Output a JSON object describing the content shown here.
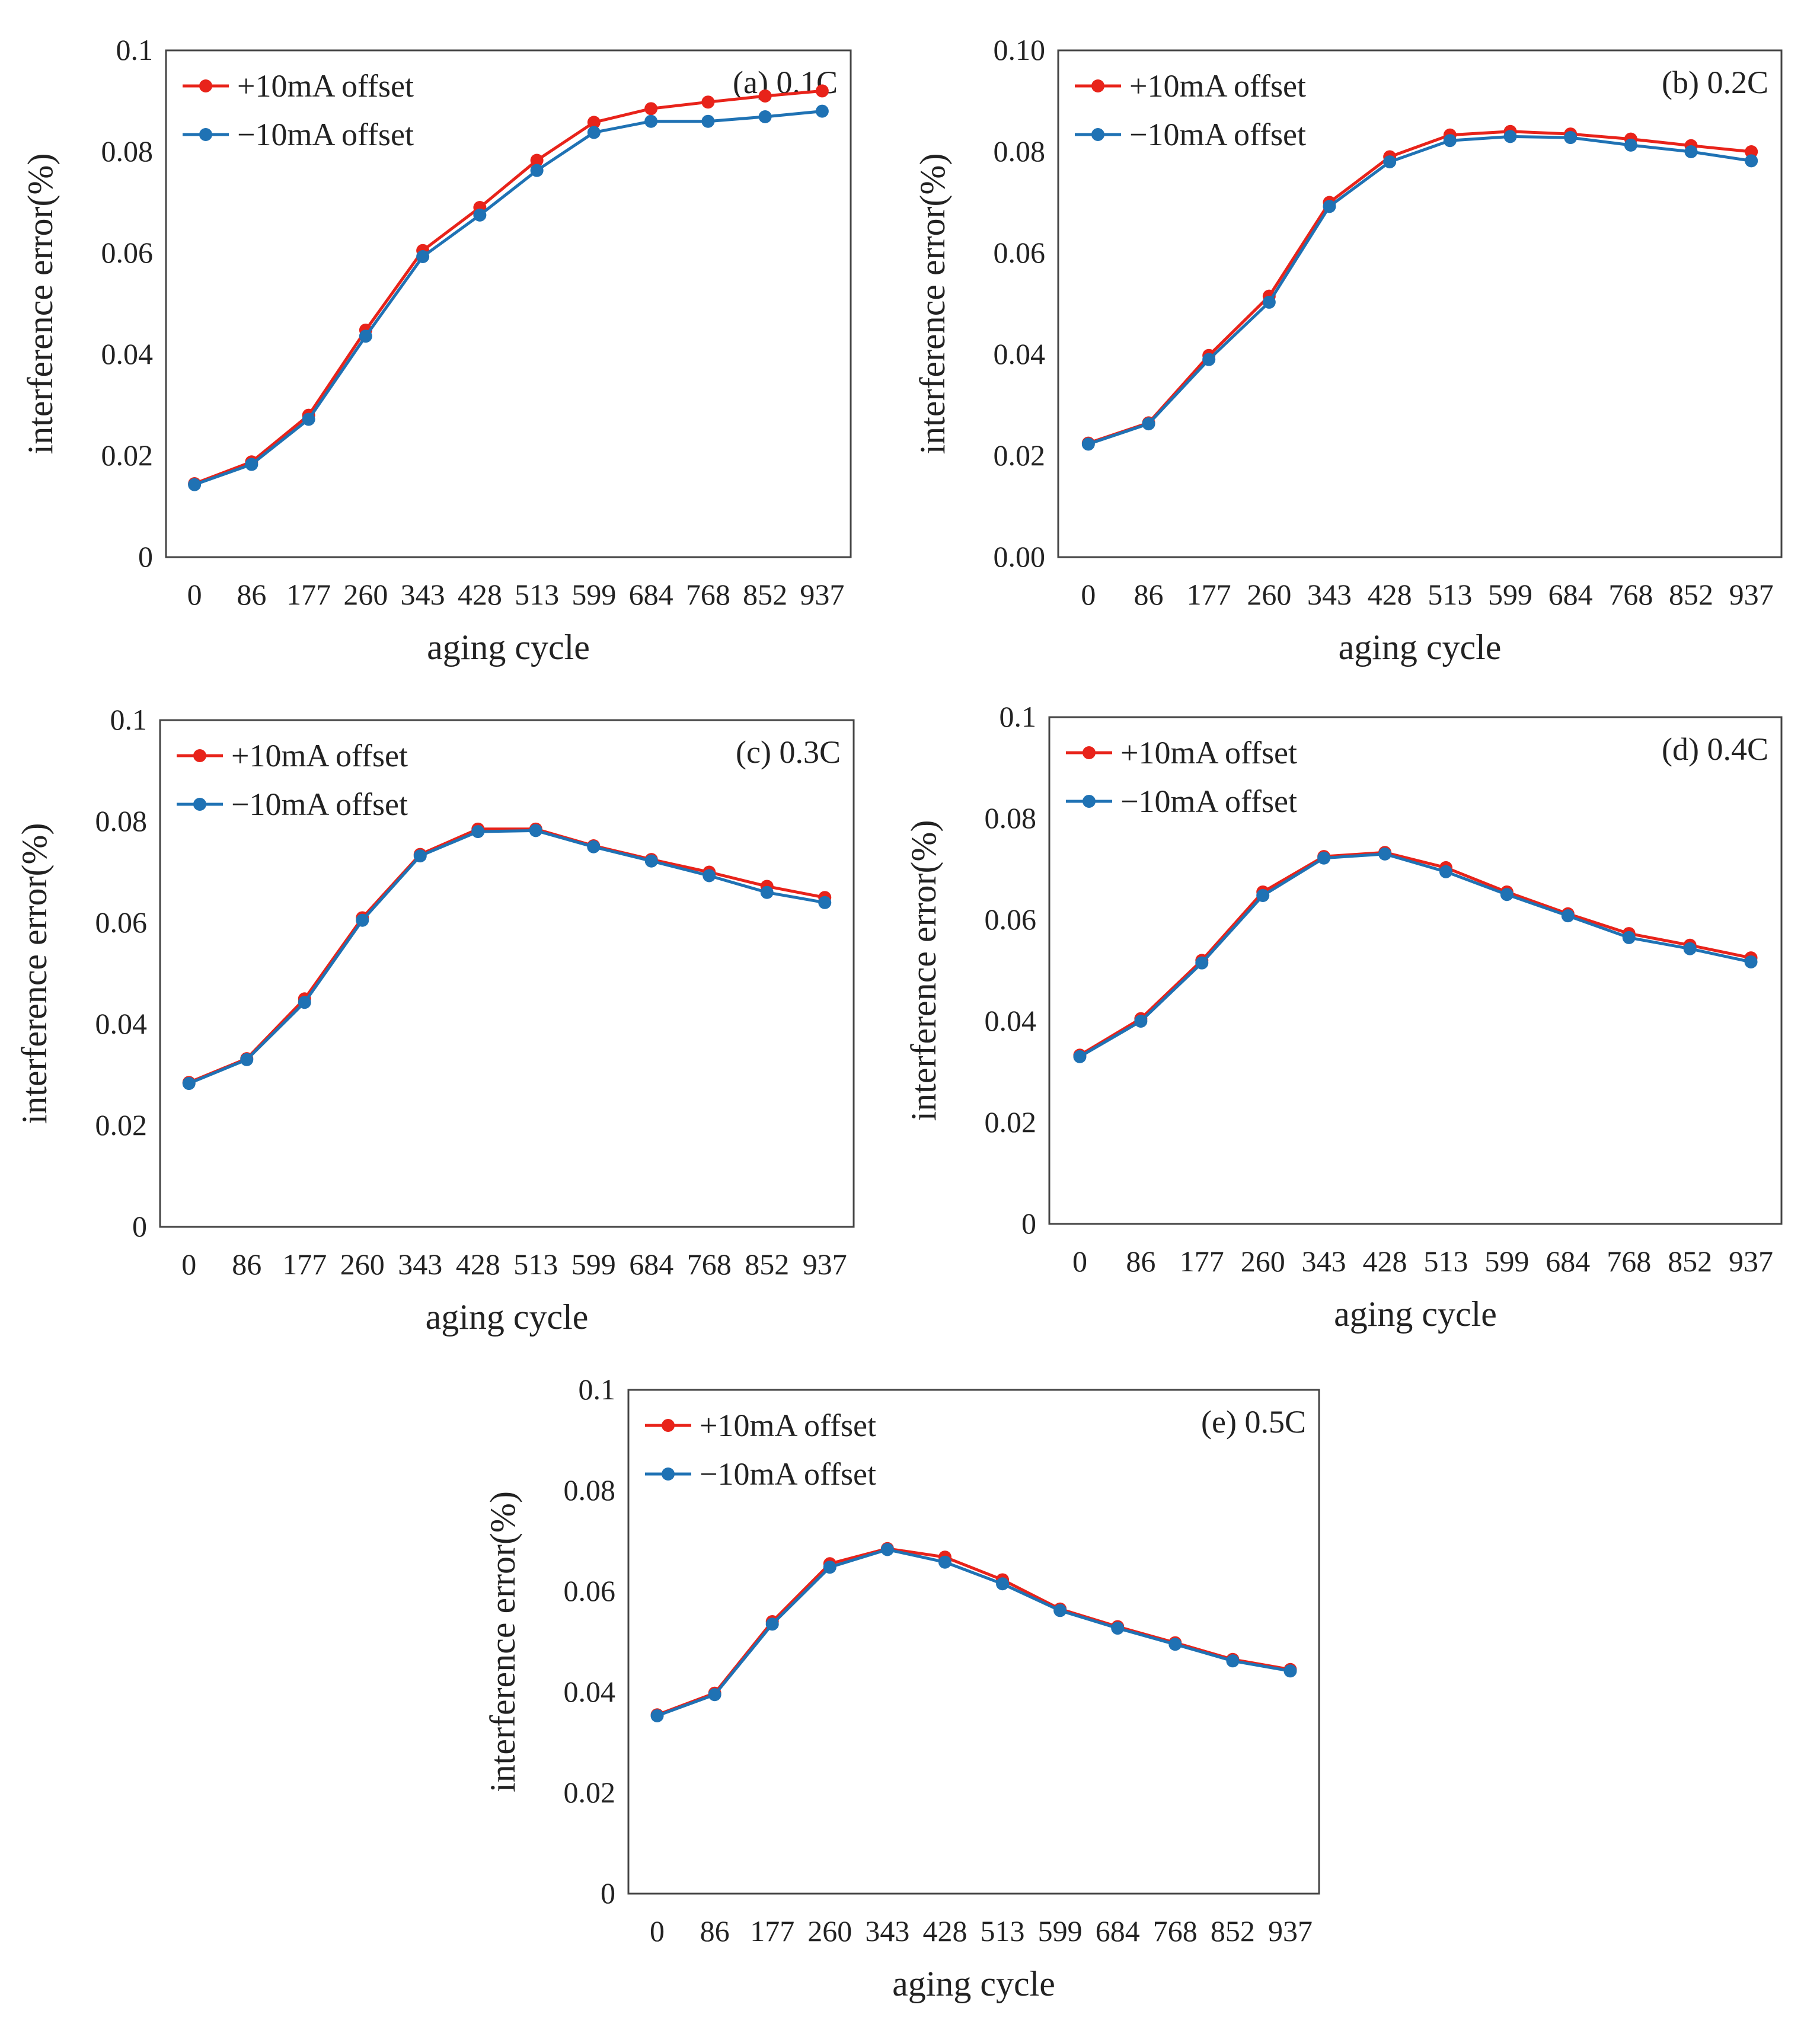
{
  "colors": {
    "plus": "#e8231a",
    "minus": "#1f72b4",
    "frame": "#444444",
    "text": "#222222"
  },
  "chart_data": [
    {
      "type": "line",
      "panel_label": "(a) 0.1C",
      "title": "",
      "xlabel": "aging  cycle",
      "ylabel": "interference error(%)",
      "categories": [
        "0",
        "86",
        "177",
        "260",
        "343",
        "428",
        "513",
        "599",
        "684",
        "768",
        "852",
        "937"
      ],
      "ylim": [
        0,
        0.1
      ],
      "yticks": [
        "0",
        "0.02",
        "0.04",
        "0.06",
        "0.08",
        "0.1"
      ],
      "legend_position": "top-left",
      "series": [
        {
          "name": "+10mA offset",
          "color": "#e8231a",
          "values": [
            0.0145,
            0.0188,
            0.028,
            0.0448,
            0.0605,
            0.069,
            0.0783,
            0.0858,
            0.0885,
            0.0898,
            0.091,
            0.092
          ]
        },
        {
          "name": "−10mA offset",
          "color": "#1f72b4",
          "values": [
            0.0143,
            0.0183,
            0.0272,
            0.0436,
            0.0593,
            0.0675,
            0.0763,
            0.0838,
            0.086,
            0.086,
            0.0869,
            0.088
          ]
        }
      ]
    },
    {
      "type": "line",
      "panel_label": "(b) 0.2C",
      "title": "",
      "xlabel": "aging  cycle",
      "ylabel": "interference error(%)",
      "categories": [
        "0",
        "86",
        "177",
        "260",
        "343",
        "428",
        "513",
        "599",
        "684",
        "768",
        "852",
        "937"
      ],
      "ylim": [
        0,
        0.1
      ],
      "yticks": [
        "0.00",
        "0.02",
        "0.04",
        "0.06",
        "0.08",
        "0.10"
      ],
      "legend_position": "top-left",
      "series": [
        {
          "name": "+10mA offset",
          "color": "#e8231a",
          "values": [
            0.0225,
            0.0265,
            0.0398,
            0.0515,
            0.07,
            0.079,
            0.0833,
            0.084,
            0.0835,
            0.0825,
            0.0812,
            0.08
          ]
        },
        {
          "name": "−10mA offset",
          "color": "#1f72b4",
          "values": [
            0.0223,
            0.0263,
            0.039,
            0.0503,
            0.0692,
            0.078,
            0.0822,
            0.083,
            0.0828,
            0.0813,
            0.08,
            0.0782
          ]
        }
      ]
    },
    {
      "type": "line",
      "panel_label": "(c) 0.3C",
      "title": "",
      "xlabel": "aging  cycle",
      "ylabel": "interference error(%)",
      "categories": [
        "0",
        "86",
        "177",
        "260",
        "343",
        "428",
        "513",
        "599",
        "684",
        "768",
        "852",
        "937"
      ],
      "ylim": [
        0,
        0.1
      ],
      "yticks": [
        "0",
        "0.02",
        "0.04",
        "0.06",
        "0.08",
        "0.1"
      ],
      "legend_position": "top-left",
      "series": [
        {
          "name": "+10mA offset",
          "color": "#e8231a",
          "values": [
            0.0285,
            0.0332,
            0.045,
            0.061,
            0.0735,
            0.0785,
            0.0785,
            0.0752,
            0.0725,
            0.07,
            0.0672,
            0.065
          ]
        },
        {
          "name": "−10mA offset",
          "color": "#1f72b4",
          "values": [
            0.0283,
            0.033,
            0.0443,
            0.0605,
            0.0732,
            0.078,
            0.0782,
            0.075,
            0.0722,
            0.0693,
            0.066,
            0.064
          ]
        }
      ]
    },
    {
      "type": "line",
      "panel_label": "(d) 0.4C",
      "title": "",
      "xlabel": "aging  cycle",
      "ylabel": "interference error(%)",
      "categories": [
        "0",
        "86",
        "177",
        "260",
        "343",
        "428",
        "513",
        "599",
        "684",
        "768",
        "852",
        "937"
      ],
      "ylim": [
        0,
        0.1
      ],
      "yticks": [
        "0",
        "0.02",
        "0.04",
        "0.06",
        "0.08",
        "0.1"
      ],
      "legend_position": "top-left",
      "series": [
        {
          "name": "+10mA offset",
          "color": "#e8231a",
          "values": [
            0.0333,
            0.0405,
            0.052,
            0.0655,
            0.0725,
            0.0733,
            0.0703,
            0.0655,
            0.0612,
            0.0573,
            0.055,
            0.0525
          ]
        },
        {
          "name": "−10mA offset",
          "color": "#1f72b4",
          "values": [
            0.033,
            0.04,
            0.0515,
            0.0648,
            0.0722,
            0.073,
            0.0695,
            0.065,
            0.0608,
            0.0565,
            0.0543,
            0.0517
          ]
        }
      ]
    },
    {
      "type": "line",
      "panel_label": "(e) 0.5C",
      "title": "",
      "xlabel": "aging  cycle",
      "ylabel": "interference error(%)",
      "categories": [
        "0",
        "86",
        "177",
        "260",
        "343",
        "428",
        "513",
        "599",
        "684",
        "768",
        "852",
        "937"
      ],
      "ylim": [
        0,
        0.1
      ],
      "yticks": [
        "0",
        "0.02",
        "0.04",
        "0.06",
        "0.08",
        "0.1"
      ],
      "legend_position": "top-left",
      "series": [
        {
          "name": "+10mA offset",
          "color": "#e8231a",
          "values": [
            0.0355,
            0.0398,
            0.054,
            0.0655,
            0.0685,
            0.0668,
            0.0623,
            0.0565,
            0.053,
            0.0498,
            0.0465,
            0.0445
          ]
        },
        {
          "name": "−10mA offset",
          "color": "#1f72b4",
          "values": [
            0.0353,
            0.0395,
            0.0535,
            0.0648,
            0.0683,
            0.0658,
            0.0615,
            0.0562,
            0.0527,
            0.0495,
            0.0462,
            0.0442
          ]
        }
      ]
    }
  ]
}
